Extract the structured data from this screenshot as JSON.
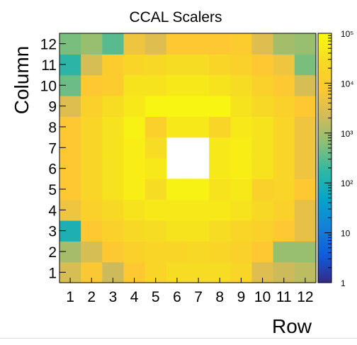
{
  "chart_data": {
    "type": "heatmap",
    "title": "CCAL Scalers",
    "xlabel": "Row",
    "ylabel": "Column",
    "x_categories": [
      "1",
      "2",
      "3",
      "4",
      "5",
      "6",
      "7",
      "8",
      "9",
      "10",
      "11",
      "12"
    ],
    "y_categories": [
      "1",
      "2",
      "3",
      "4",
      "5",
      "6",
      "7",
      "8",
      "9",
      "10",
      "11",
      "12"
    ],
    "z_scale": "log",
    "z_range": [
      1,
      100000
    ],
    "z_tick_labels": [
      "1",
      "10",
      "10²",
      "10³",
      "10⁴",
      "10⁵"
    ],
    "z_ticks": [
      1,
      10,
      100,
      1000,
      10000,
      100000
    ],
    "palette": [
      "#352a87",
      "#0f5cdd",
      "#1481d6",
      "#06a4ca",
      "#2eb7a4",
      "#87bf77",
      "#d1bb59",
      "#fec832",
      "#f6da23",
      "#f9fb0e"
    ],
    "empty_cells": [
      [
        6,
        6
      ],
      [
        6,
        7
      ],
      [
        7,
        6
      ],
      [
        7,
        7
      ]
    ],
    "values": [
      [
        2500,
        7000,
        2000,
        8000,
        20000,
        30000,
        30000,
        30000,
        20000,
        3000,
        2000,
        1500
      ],
      [
        1000,
        2500,
        8000,
        15000,
        20000,
        20000,
        25000,
        20000,
        15000,
        8000,
        800,
        800
      ],
      [
        100,
        8000,
        15000,
        25000,
        30000,
        40000,
        40000,
        30000,
        20000,
        15000,
        8000,
        4000
      ],
      [
        5000,
        15000,
        25000,
        40000,
        50000,
        50000,
        50000,
        50000,
        40000,
        25000,
        15000,
        4000
      ],
      [
        8000,
        20000,
        40000,
        60000,
        30000,
        70000,
        70000,
        40000,
        50000,
        15000,
        20000,
        8000
      ],
      [
        8000,
        20000,
        40000,
        60000,
        50000,
        null,
        null,
        50000,
        60000,
        40000,
        20000,
        5000
      ],
      [
        8000,
        20000,
        40000,
        60000,
        30000,
        null,
        null,
        50000,
        60000,
        40000,
        20000,
        5000
      ],
      [
        8000,
        20000,
        40000,
        70000,
        15000,
        50000,
        50000,
        20000,
        50000,
        40000,
        20000,
        5000
      ],
      [
        3000,
        15000,
        30000,
        50000,
        80000,
        80000,
        80000,
        80000,
        40000,
        25000,
        15000,
        8000
      ],
      [
        400,
        8000,
        10000,
        40000,
        40000,
        50000,
        50000,
        40000,
        30000,
        15000,
        8000,
        2500
      ],
      [
        150,
        2500,
        10000,
        20000,
        25000,
        30000,
        30000,
        20000,
        15000,
        8000,
        5000,
        500
      ],
      [
        500,
        800,
        300,
        5000,
        3000,
        8000,
        8000,
        8000,
        10000,
        3000,
        1000,
        800
      ]
    ]
  }
}
